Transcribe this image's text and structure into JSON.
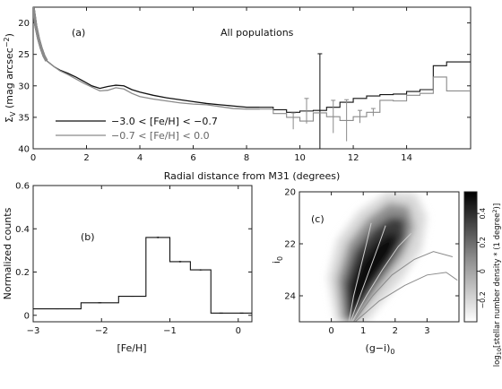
{
  "chart_data": [
    {
      "panel": "(a)",
      "type": "line",
      "title": "All populations",
      "xlabel": "Radial distance from M31 (degrees)",
      "ylabel": "Σ_V (mag arcsec^-2)",
      "ylabel_main": "Σ",
      "ylabel_sub": "V",
      "ylabel_rest": " (mag arcsec",
      "ylabel_sup": "−2",
      "ylabel_close": ")",
      "xlim": [
        0,
        16.4
      ],
      "ylim": [
        40,
        17.5
      ],
      "y_inverted": true,
      "xticks": [
        0,
        2,
        4,
        6,
        8,
        10,
        12,
        14
      ],
      "xtick_labels": [
        "0",
        "2",
        "4",
        "6",
        "8",
        "10",
        "12",
        "14"
      ],
      "yticks": [
        20,
        25,
        30,
        35,
        40
      ],
      "ytick_labels": [
        "20",
        "25",
        "30",
        "35",
        "40"
      ],
      "legend": [
        {
          "label": "−3.0 < [Fe/H] < −0.7",
          "color": "#111111"
        },
        {
          "label": "−0.7 < [Fe/H] <  0.0",
          "color": "#8a8a8a"
        }
      ],
      "series": [
        {
          "name": "−3.0 < [Fe/H] < −0.7",
          "color": "#111111",
          "inner": [
            [
              0,
              17.5
            ],
            [
              0.1,
              20.5
            ],
            [
              0.2,
              22.5
            ],
            [
              0.3,
              24.0
            ],
            [
              0.4,
              25.2
            ],
            [
              0.5,
              26.0
            ]
          ],
          "outer": [
            [
              0.5,
              26.0
            ],
            [
              0.8,
              27.0
            ],
            [
              1.0,
              27.5
            ],
            [
              1.3,
              28.0
            ],
            [
              1.6,
              28.6
            ],
            [
              1.9,
              29.3
            ],
            [
              2.2,
              30.0
            ],
            [
              2.5,
              30.4
            ],
            [
              2.8,
              30.1
            ],
            [
              3.1,
              29.9
            ],
            [
              3.4,
              30.0
            ],
            [
              3.7,
              30.6
            ],
            [
              4.0,
              31.0
            ],
            [
              4.5,
              31.5
            ],
            [
              5.0,
              31.9
            ],
            [
              5.5,
              32.2
            ],
            [
              6.0,
              32.5
            ],
            [
              6.5,
              32.8
            ],
            [
              7.0,
              33.0
            ],
            [
              7.5,
              33.2
            ],
            [
              8.0,
              33.4
            ],
            [
              8.5,
              33.4
            ]
          ],
          "steps": [
            [
              8.5,
              33.4
            ],
            [
              9.0,
              33.8
            ],
            [
              9.5,
              34.2
            ],
            [
              10.0,
              34.0
            ],
            [
              10.5,
              33.9
            ],
            [
              11.0,
              33.4
            ],
            [
              11.5,
              32.6
            ],
            [
              12.0,
              32.0
            ],
            [
              12.5,
              31.6
            ],
            [
              13.0,
              31.4
            ],
            [
              13.5,
              31.3
            ],
            [
              14.0,
              30.9
            ],
            [
              14.5,
              30.6
            ],
            [
              15.0,
              26.8
            ],
            [
              15.5,
              26.2
            ],
            [
              16.0,
              26.2
            ]
          ],
          "errorbars": [
            [
              10.75,
              33.9,
              9.0
            ]
          ]
        },
        {
          "name": "−0.7 < [Fe/H] <  0.0",
          "color": "#8a8a8a",
          "inner": [
            [
              0,
              17.5
            ],
            [
              0.1,
              20.5
            ],
            [
              0.2,
              22.5
            ],
            [
              0.3,
              24.0
            ],
            [
              0.4,
              25.2
            ],
            [
              0.5,
              26.0
            ]
          ],
          "outer": [
            [
              0.5,
              26.0
            ],
            [
              0.8,
              27.0
            ],
            [
              1.0,
              27.6
            ],
            [
              1.3,
              28.2
            ],
            [
              1.6,
              28.9
            ],
            [
              1.9,
              29.6
            ],
            [
              2.2,
              30.2
            ],
            [
              2.5,
              30.8
            ],
            [
              2.8,
              30.7
            ],
            [
              3.1,
              30.3
            ],
            [
              3.4,
              30.5
            ],
            [
              3.7,
              31.2
            ],
            [
              4.0,
              31.7
            ],
            [
              4.5,
              32.1
            ],
            [
              5.0,
              32.4
            ],
            [
              5.5,
              32.7
            ],
            [
              6.0,
              32.9
            ],
            [
              6.5,
              33.0
            ],
            [
              7.0,
              33.3
            ],
            [
              7.5,
              33.6
            ],
            [
              8.0,
              33.7
            ],
            [
              8.5,
              33.7
            ]
          ],
          "steps": [
            [
              8.5,
              33.7
            ],
            [
              9.0,
              34.4
            ],
            [
              9.5,
              35.0
            ],
            [
              10.0,
              35.6
            ],
            [
              10.5,
              34.3
            ],
            [
              11.0,
              34.9
            ],
            [
              11.5,
              35.5
            ],
            [
              12.0,
              34.9
            ],
            [
              12.5,
              34.2
            ],
            [
              13.0,
              32.3
            ],
            [
              13.5,
              32.4
            ],
            [
              14.0,
              31.5
            ],
            [
              14.5,
              31.2
            ],
            [
              15.0,
              28.6
            ],
            [
              15.5,
              30.8
            ],
            [
              16.0,
              30.8
            ]
          ],
          "errorbars": [
            [
              9.75,
              35.6,
              1.3
            ],
            [
              10.25,
              34.0,
              2.0
            ],
            [
              11.25,
              34.9,
              2.6
            ],
            [
              11.75,
              35.5,
              3.3
            ],
            [
              12.25,
              34.9,
              1.0
            ],
            [
              12.75,
              34.2,
              0.6
            ]
          ]
        }
      ]
    },
    {
      "panel": "(b)",
      "type": "bar",
      "histtype": "step",
      "xlabel": "[Fe/H]",
      "ylabel": "Normalized counts",
      "xlim": [
        -3.0,
        0.2
      ],
      "ylim": [
        -0.03,
        0.6
      ],
      "xticks": [
        -3,
        -2,
        -1,
        0
      ],
      "xtick_labels": [
        "−3",
        "−2",
        "−1",
        "0"
      ],
      "yticks": [
        0,
        0.2,
        0.4,
        0.6
      ],
      "ytick_labels": [
        "0",
        "0.2",
        "0.4",
        "0.6"
      ],
      "bin_edges": [
        -3.0,
        -2.3,
        -1.75,
        -1.35,
        -1.0,
        -0.7,
        -0.4,
        -0.1,
        0.2
      ],
      "values": [
        0.03,
        0.058,
        0.088,
        0.36,
        0.248,
        0.21,
        0.01,
        0.01
      ],
      "errors": [
        0.002,
        0.002,
        0.002,
        0.004,
        0.004,
        0.003,
        0.001,
        0.001
      ]
    },
    {
      "panel": "(c)",
      "type": "heatmap",
      "xlabel_main": "(g−i)",
      "xlabel_sub": "0",
      "ylabel_main": "i",
      "ylabel_sub": "0",
      "xlim": [
        -1.0,
        4.0
      ],
      "ylim": [
        25.0,
        20.0
      ],
      "y_inverted": true,
      "xticks": [
        0,
        1,
        2,
        3
      ],
      "xtick_labels": [
        "0",
        "1",
        "2",
        "3"
      ],
      "yticks": [
        20,
        22,
        24
      ],
      "ytick_labels": [
        "20",
        "22",
        "24"
      ],
      "colorbar": {
        "label": "log10[stellar number density * (1 degree²)]",
        "label_main": "log",
        "label_sub": "10",
        "label_rest": "[stellar number density * (1 degree",
        "label_sup": "2",
        "label_close": ")]",
        "ticks": [
          -0.2,
          0,
          0.2,
          0.4
        ],
        "tick_labels": [
          "−0.2",
          "0",
          "0.2",
          "0.4"
        ],
        "range": [
          -0.35,
          0.55
        ],
        "cmap": "greys"
      },
      "isochrones": [
        {
          "color": "#cfcfcf",
          "points": [
            [
              0.55,
              25.0
            ],
            [
              0.7,
              24.0
            ],
            [
              0.9,
              23.0
            ],
            [
              1.1,
              22.0
            ],
            [
              1.25,
              21.2
            ]
          ]
        },
        {
          "color": "#cfcfcf",
          "points": [
            [
              0.6,
              25.0
            ],
            [
              0.9,
              24.0
            ],
            [
              1.2,
              23.0
            ],
            [
              1.5,
              22.0
            ],
            [
              1.7,
              21.3
            ]
          ]
        },
        {
          "color": "#cfcfcf",
          "points": [
            [
              0.65,
              25.0
            ],
            [
              1.1,
              24.0
            ],
            [
              1.6,
              23.0
            ],
            [
              2.1,
              22.1
            ],
            [
              2.5,
              21.6
            ]
          ]
        },
        {
          "color": "#8a8a8a",
          "points": [
            [
              0.7,
              25.0
            ],
            [
              1.3,
              24.0
            ],
            [
              1.9,
              23.2
            ],
            [
              2.6,
              22.6
            ],
            [
              3.2,
              22.3
            ],
            [
              3.8,
              22.5
            ]
          ]
        },
        {
          "color": "#8a8a8a",
          "points": [
            [
              0.75,
              25.0
            ],
            [
              1.5,
              24.2
            ],
            [
              2.3,
              23.6
            ],
            [
              3.0,
              23.2
            ],
            [
              3.6,
              23.1
            ],
            [
              3.95,
              23.4
            ]
          ]
        }
      ]
    }
  ]
}
